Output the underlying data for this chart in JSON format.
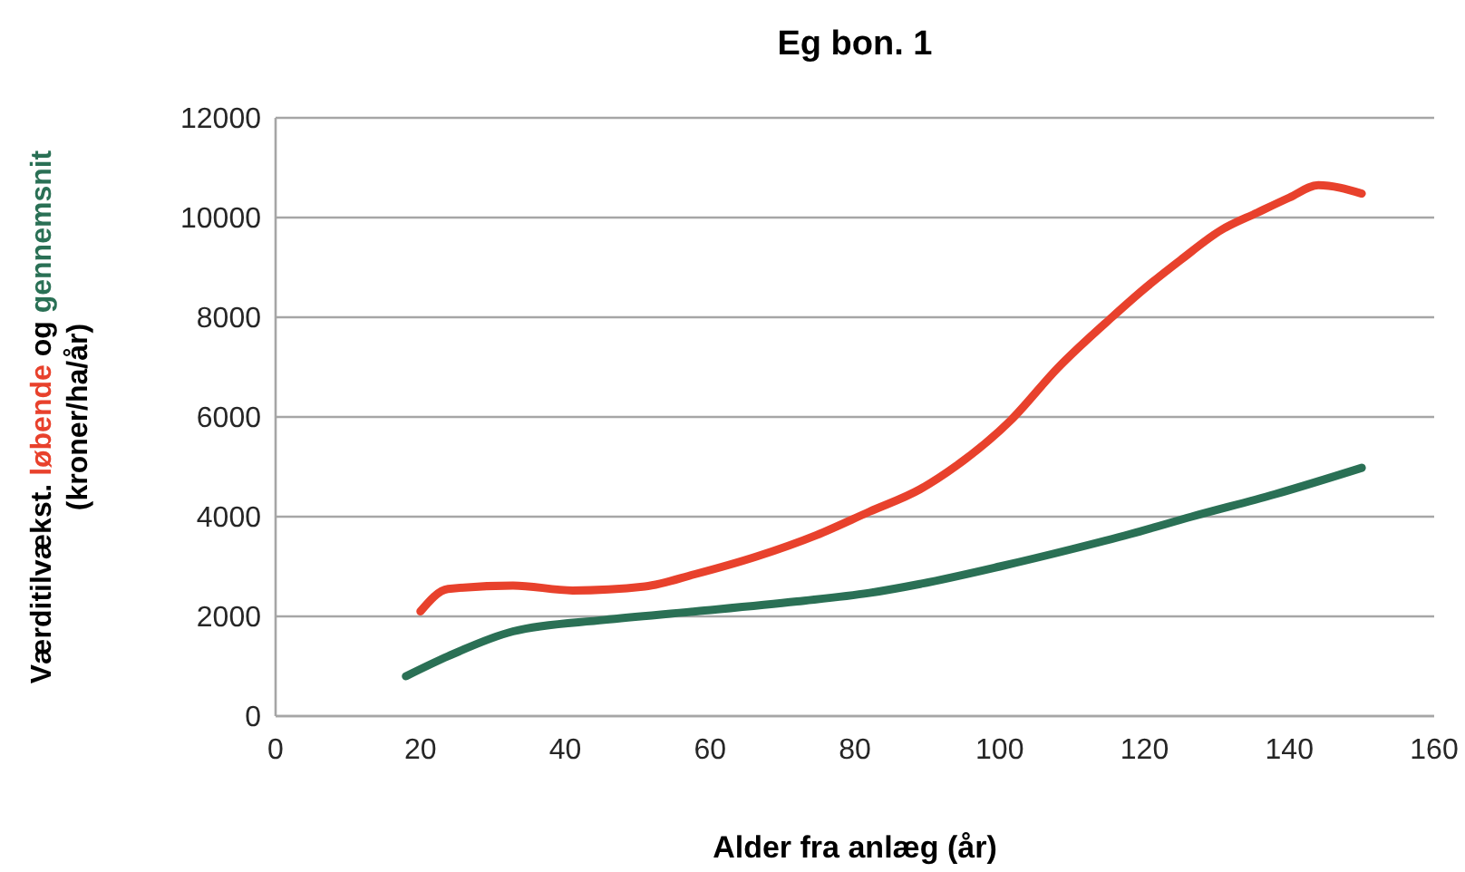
{
  "chart_data": {
    "type": "line",
    "title": "Eg bon. 1",
    "xlabel": "Alder fra anlæg (år)",
    "ylabel": "Værditilvækst. løbende og gennemsnit\n(kroner/ha/år)",
    "xlim": [
      0,
      160
    ],
    "xticks": [
      0,
      20,
      40,
      60,
      80,
      100,
      120,
      140,
      160
    ],
    "ylim": [
      0,
      12000
    ],
    "yticks": [
      0,
      2000,
      4000,
      6000,
      8000,
      10000,
      12000
    ],
    "grid": "y",
    "legend": false,
    "marker": "none",
    "line_style": "solid",
    "series": [
      {
        "color": "#e8412c",
        "x": [
          20,
          23.8,
          32.8,
          41,
          51,
          58,
          66.4,
          74.7,
          82,
          89,
          94,
          101.5,
          108,
          115.5,
          119.8,
          125,
          130.6,
          135.6,
          140,
          144,
          150
        ],
        "values": [
          2100,
          2550,
          2620,
          2520,
          2600,
          2850,
          3200,
          3630,
          4100,
          4550,
          5020,
          5930,
          6980,
          8000,
          8550,
          9150,
          9750,
          10100,
          10400,
          10650,
          10480
        ]
      },
      {
        "color": "#2a7055",
        "x": [
          18,
          23.8,
          32.8,
          45.4,
          58,
          72,
          82,
          89,
          100,
          110,
          118,
          126.5,
          138,
          150
        ],
        "values": [
          800,
          1200,
          1700,
          1930,
          2100,
          2300,
          2470,
          2650,
          3000,
          3350,
          3650,
          4000,
          4450,
          4980
        ]
      }
    ]
  }
}
